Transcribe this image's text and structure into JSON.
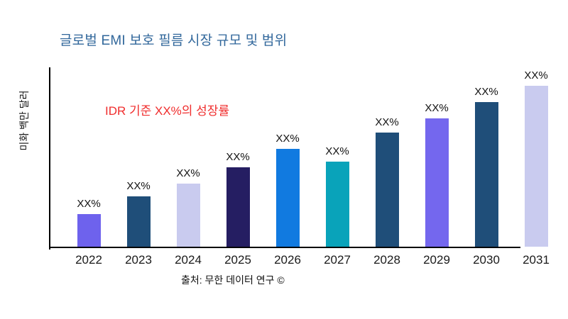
{
  "chart": {
    "title": "글로벌 EMI 보호 필름 시장 규모 및 범위",
    "ylabel": "미화 백만 달러",
    "annotation": "IDR 기준 XX%의 성장률",
    "source": "출처: 무한 데이터 연구 ©"
  },
  "colors": {
    "title": "#31679b",
    "annotation": "#f02d2d",
    "axis": "#000000",
    "label_text": "#111111"
  },
  "chart_data": {
    "type": "bar",
    "title": "글로벌 EMI 보호 필름 시장 규모 및 범위",
    "xlabel": "",
    "ylabel": "미화 백만 달러",
    "annotation": "IDR 기준 XX%의 성장률",
    "source": "출처: 무한 데이터 연구 ©",
    "categories": [
      "2022",
      "2023",
      "2024",
      "2025",
      "2026",
      "2027",
      "2028",
      "2029",
      "2030",
      "2031"
    ],
    "bar_labels": [
      "XX%",
      "XX%",
      "XX%",
      "XX%",
      "XX%",
      "XX%",
      "XX%",
      "XX%",
      "XX%",
      "XX%"
    ],
    "values_relative_height_pct": [
      18,
      28,
      35,
      44,
      54,
      47,
      63,
      71,
      80,
      89
    ],
    "bar_colors": [
      "#6e62ed",
      "#1f4e79",
      "#c9cbef",
      "#251e62",
      "#117ae0",
      "#09a3ba",
      "#1f4e79",
      "#7467ee",
      "#1f4e79",
      "#c9cbef"
    ],
    "legend": null,
    "grid": false,
    "note": "values hidden in source chart; bars labeled XX%, heights are relative percentages of plot height"
  }
}
